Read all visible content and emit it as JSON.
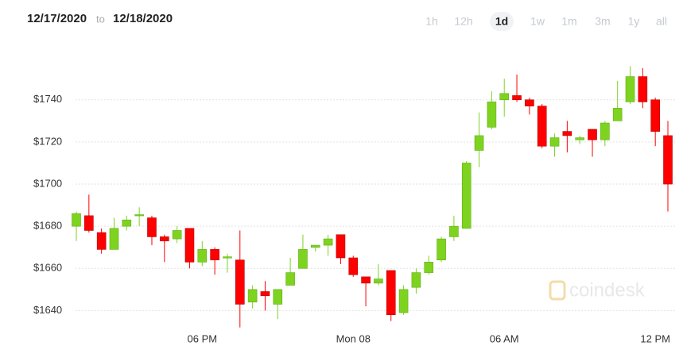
{
  "header": {
    "from": "12/17/2020",
    "sep": "to",
    "to": "12/18/2020",
    "ranges": [
      "1h",
      "12h",
      "1d",
      "1w",
      "1m",
      "3m",
      "1y",
      "all"
    ],
    "selected": "1d"
  },
  "watermark": "coindesk",
  "chart_data": {
    "type": "candlestick",
    "up_color": "#7ed321",
    "down_color": "#ff0000",
    "grid": true,
    "categories": [
      null,
      null,
      null,
      null,
      null,
      null,
      null,
      null,
      null,
      null,
      "06 PM",
      null,
      null,
      null,
      null,
      null,
      null,
      null,
      null,
      null,
      null,
      null,
      "Mon 08",
      null,
      null,
      null,
      null,
      null,
      null,
      null,
      null,
      null,
      null,
      null,
      "06 AM",
      null,
      null,
      null,
      null,
      null,
      null,
      null,
      null,
      null,
      null,
      null,
      "12 PM",
      null
    ],
    "open": [
      1680,
      1685,
      1677,
      1669,
      1680,
      1685,
      1684,
      1675,
      1674,
      1679,
      1663,
      1669,
      1665,
      1664,
      1644,
      1649,
      1643,
      1652,
      1660,
      1670,
      1671,
      1676,
      1665,
      1656,
      1653,
      1659,
      1639,
      1651,
      1658,
      1664,
      1675,
      1679,
      1716,
      1727,
      1740,
      1742,
      1740,
      1737,
      1718,
      1725,
      1721,
      1726,
      1721,
      1730,
      1739,
      1751,
      1740,
      1723
    ],
    "high": [
      1687,
      1695,
      1679,
      1684,
      1685,
      1689,
      1685,
      1676,
      1680,
      1679,
      1673,
      1670,
      1667,
      1678,
      1652,
      1654,
      1650,
      1665,
      1676,
      1671,
      1676,
      1676,
      1666,
      1656,
      1662,
      1659,
      1652,
      1660,
      1666,
      1675,
      1685,
      1711,
      1734,
      1744,
      1750,
      1752,
      1741,
      1738,
      1724,
      1730,
      1723,
      1726,
      1730,
      1749,
      1756,
      1755,
      1741,
      1730
    ],
    "low": [
      1673,
      1677,
      1667,
      1669,
      1678,
      1680,
      1671,
      1663,
      1672,
      1660,
      1661,
      1657,
      1658,
      1632,
      1641,
      1640,
      1636,
      1652,
      1660,
      1668,
      1666,
      1662,
      1656,
      1642,
      1652,
      1635,
      1638,
      1648,
      1657,
      1663,
      1673,
      1679,
      1708,
      1726,
      1732,
      1739,
      1733,
      1717,
      1713,
      1715,
      1719,
      1713,
      1718,
      1730,
      1738,
      1736,
      1718,
      1687
    ],
    "close": [
      1686,
      1678,
      1669,
      1679,
      1683,
      1685.5,
      1675,
      1673,
      1678,
      1663,
      1669,
      1664,
      1665.5,
      1643,
      1650,
      1647,
      1650,
      1658,
      1669,
      1671,
      1674,
      1665,
      1657,
      1653,
      1655,
      1638,
      1650,
      1658,
      1663,
      1674,
      1680,
      1710,
      1723,
      1739,
      1743,
      1740,
      1737,
      1718,
      1722,
      1723,
      1722,
      1721,
      1729,
      1736,
      1751,
      1739,
      1725,
      1700
    ],
    "ylim": [
      1633,
      1761
    ],
    "yticks": [
      {
        "value": 1640,
        "label": "$1640"
      },
      {
        "value": 1660,
        "label": "$1660"
      },
      {
        "value": 1680,
        "label": "$1680"
      },
      {
        "value": 1700,
        "label": "$1700"
      },
      {
        "value": 1720,
        "label": "$1720"
      },
      {
        "value": 1740,
        "label": "$1740"
      }
    ]
  }
}
